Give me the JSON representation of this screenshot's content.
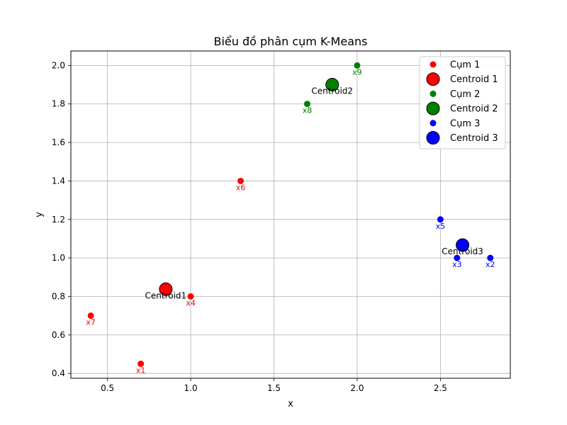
{
  "chart_data": {
    "type": "scatter",
    "title": "Biểu đồ phân cụm K-Means",
    "xlabel": "x",
    "ylabel": "y",
    "xlim": [
      0.28,
      2.92
    ],
    "ylim": [
      0.375,
      2.075
    ],
    "grid": true,
    "legend_position": "top-right",
    "xticks": [
      "0.5",
      "1.0",
      "1.5",
      "2.0",
      "2.5"
    ],
    "xtick_values": [
      0.5,
      1.0,
      1.5,
      2.0,
      2.5
    ],
    "yticks": [
      "0.4",
      "0.6",
      "0.8",
      "1.0",
      "1.2",
      "1.4",
      "1.6",
      "1.8",
      "2.0"
    ],
    "ytick_values": [
      0.4,
      0.6,
      0.8,
      1.0,
      1.2,
      1.4,
      1.6,
      1.8,
      2.0
    ],
    "clusters": [
      {
        "name": "Cụm 1",
        "color": "#ff0000",
        "points": [
          {
            "label": "x1",
            "x": 0.7,
            "y": 0.45
          },
          {
            "label": "x4",
            "x": 1.0,
            "y": 0.8
          },
          {
            "label": "x6",
            "x": 1.3,
            "y": 1.4
          },
          {
            "label": "x7",
            "x": 0.4,
            "y": 0.7
          }
        ],
        "centroid": {
          "name": "Centroid 1",
          "label": "Centroid1",
          "x": 0.85,
          "y": 0.8375
        }
      },
      {
        "name": "Cụm 2",
        "color": "#008000",
        "points": [
          {
            "label": "x8",
            "x": 1.7,
            "y": 1.8
          },
          {
            "label": "x9",
            "x": 2.0,
            "y": 2.0
          }
        ],
        "centroid": {
          "name": "Centroid 2",
          "label": "Centroid2",
          "x": 1.85,
          "y": 1.9
        }
      },
      {
        "name": "Cụm 3",
        "color": "#0000ff",
        "points": [
          {
            "label": "x2",
            "x": 2.8,
            "y": 1.0
          },
          {
            "label": "x3",
            "x": 2.6,
            "y": 1.0
          },
          {
            "label": "x5",
            "x": 2.5,
            "y": 1.2
          }
        ],
        "centroid": {
          "name": "Centroid 3",
          "label": "Centroid3",
          "x": 2.633,
          "y": 1.067
        }
      }
    ]
  }
}
